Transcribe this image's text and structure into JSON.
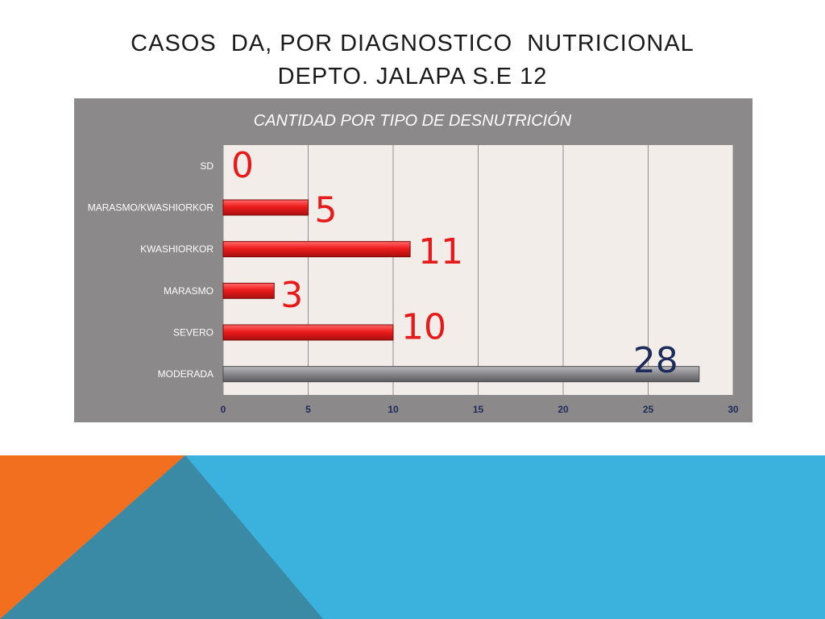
{
  "slide": {
    "title_line1": "CASOS  DA, POR DIAGNOSTICO  NUTRICIONAL",
    "title_line2": "DEPTO. JALAPA S.E 12"
  },
  "colors": {
    "chart_background": "#8b8989",
    "plot_background": "#f2ede8",
    "red_bar": "#ee1c1c",
    "grey_bar": "#8e8e92",
    "red_label": "#e8191a",
    "navy_label": "#1c2b5a",
    "deco_blue": "#3bb1de",
    "deco_orange": "#f36f20",
    "deco_teal": "#3a8aa6"
  },
  "chart_data": {
    "type": "bar",
    "orientation": "horizontal",
    "title": "CANTIDAD POR TIPO DE DESNUTRICIÓN",
    "xlabel": "",
    "ylabel": "",
    "categories": [
      "SD",
      "MARASMO/KWASHIORKOR",
      "KWASHIORKOR",
      "MARASMO",
      "SEVERO",
      "MODERADA"
    ],
    "values": [
      0,
      5,
      11,
      3,
      10,
      28
    ],
    "bar_colors": [
      "red",
      "red",
      "red",
      "red",
      "red",
      "grey"
    ],
    "data_labels": [
      "0",
      "5",
      "11",
      "3",
      "10",
      "28"
    ],
    "xlim": [
      0,
      30
    ],
    "xticks": [
      "0",
      "5",
      "10",
      "15",
      "20",
      "25",
      "30"
    ],
    "grid": true,
    "legend": "none"
  }
}
